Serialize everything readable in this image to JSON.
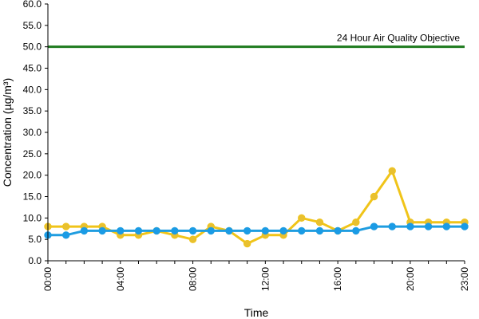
{
  "chart_data": {
    "type": "line",
    "ylabel": "Concentration (µg/m³)",
    "xlabel": "Time",
    "ylim": [
      0,
      60
    ],
    "y_ticks": [
      "0.0",
      "5.0",
      "10.0",
      "15.0",
      "20.0",
      "25.0",
      "30.0",
      "35.0",
      "40.0",
      "45.0",
      "50.0",
      "55.0",
      "60.0"
    ],
    "x_ticks": [
      "00:00",
      "04:00",
      "08:00",
      "12:00",
      "16:00",
      "20:00",
      "23:00"
    ],
    "x_tick_hours": [
      0,
      4,
      8,
      12,
      16,
      20,
      23
    ],
    "hours": [
      0,
      1,
      2,
      3,
      4,
      5,
      6,
      7,
      8,
      9,
      10,
      11,
      12,
      13,
      14,
      15,
      16,
      17,
      18,
      19,
      20,
      21,
      22,
      23
    ],
    "grid": false,
    "objective": {
      "label": "24 Hour Air Quality Objective",
      "value": 50,
      "color": "#1e7b1e"
    },
    "series": [
      {
        "color": "#f0c419",
        "marker_color": "#e8c030",
        "values": [
          8,
          8,
          8,
          8,
          6,
          6,
          7,
          6,
          5,
          8,
          7,
          4,
          6,
          6,
          10,
          9,
          7,
          9,
          15,
          21,
          9,
          9,
          9,
          9
        ]
      },
      {
        "color": "#1f9de0",
        "marker_color": "#1a9be6",
        "values": [
          6,
          6,
          7,
          7,
          7,
          7,
          7,
          7,
          7,
          7,
          7,
          7,
          7,
          7,
          7,
          7,
          7,
          7,
          8,
          8,
          8,
          8,
          8,
          8
        ]
      }
    ]
  }
}
